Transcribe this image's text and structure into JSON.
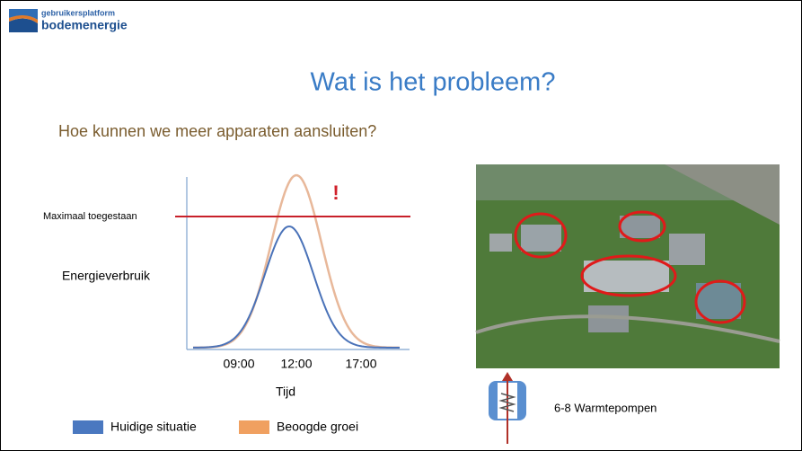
{
  "logo": {
    "line1": "gebruikersplatform",
    "line2": "bodemenergie"
  },
  "title": "Wat is het probleem?",
  "subtitle": "Hoe kunnen we meer apparaten aansluiten?",
  "chart": {
    "threshold_label": "Maximaal toegestaan",
    "alert": "!",
    "y_label": "Energieverbruik",
    "x_label": "Tijd",
    "x_ticks": [
      "09:00",
      "12:00",
      "17:00"
    ],
    "legend": [
      "Huidige situatie",
      "Beoogde groei"
    ]
  },
  "photo_caption": "6-8 Warmtepompen"
}
